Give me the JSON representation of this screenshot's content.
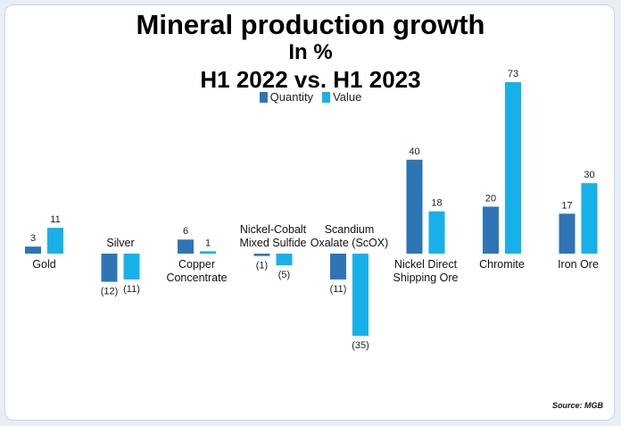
{
  "chart_data": {
    "type": "bar",
    "title": "Mineral production growth",
    "subtitle_line1": "In %",
    "subtitle_line2": "H1 2022 vs. H1 2023",
    "xlabel": "",
    "ylabel": "",
    "grid": false,
    "legend_position": "top-center",
    "categories": [
      [
        "Gold"
      ],
      [
        "Silver"
      ],
      [
        "Copper",
        "Concentrate"
      ],
      [
        "Nickel-Cobalt",
        "Mixed Sulfide"
      ],
      [
        "Scandium",
        "Oxalate (ScOX)"
      ],
      [
        "Nickel Direct",
        "Shipping Ore"
      ],
      [
        "Chromite"
      ],
      [
        "Iron Ore"
      ]
    ],
    "series": [
      {
        "name": "Quantity",
        "color": "#2e75b6",
        "values": [
          3,
          -12,
          6,
          -1,
          -11,
          40,
          20,
          17
        ],
        "labels": [
          "3",
          "(12)",
          "6",
          "(1)",
          "(11)",
          "40",
          "20",
          "17"
        ]
      },
      {
        "name": "Value",
        "color": "#17b1e9",
        "values": [
          11,
          -11,
          1,
          -5,
          -35,
          18,
          73,
          30
        ],
        "labels": [
          "11",
          "(11)",
          "1",
          "(5)",
          "(35)",
          "18",
          "73",
          "30"
        ]
      }
    ]
  },
  "source": "Source: MGB"
}
